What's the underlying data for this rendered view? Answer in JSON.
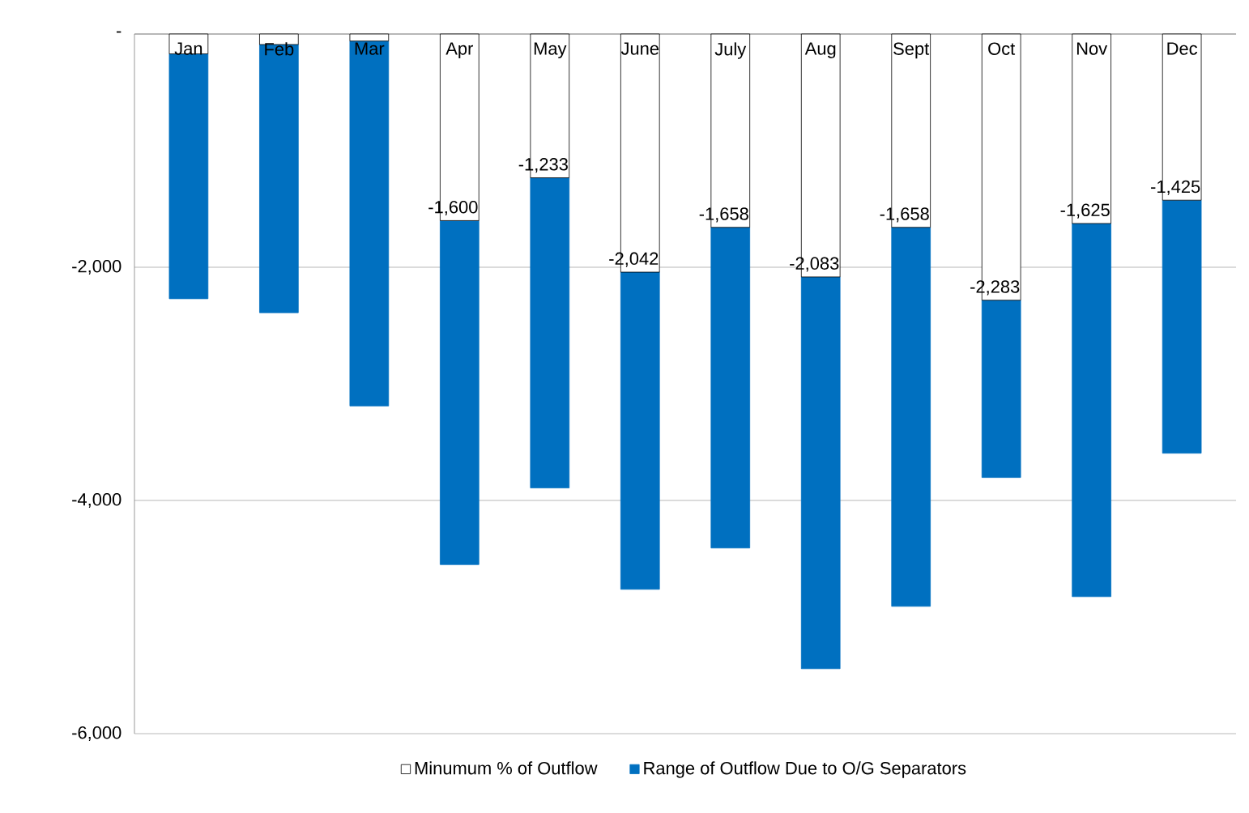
{
  "chart_data": {
    "type": "bar",
    "stacked": true,
    "categories": [
      "Jan",
      "Feb",
      "Mar",
      "Apr",
      "May",
      "June",
      "July",
      "Aug",
      "Sept",
      "Oct",
      "Nov",
      "Dec"
    ],
    "series": [
      {
        "name": "Minumum % of Outflow",
        "color": "#ffffff",
        "values": [
          -170,
          -90,
          -60,
          -1600,
          -1233,
          -2042,
          -1658,
          -2083,
          -1658,
          -2283,
          -1625,
          -1425
        ],
        "value_labels": [
          null,
          null,
          null,
          "-1,600",
          "-1,233",
          "-2,042",
          "-1,658",
          "-2,083",
          "-1,658",
          "-2,283",
          "-1,625",
          "-1,425"
        ]
      },
      {
        "name": "Range of Outflow Due to O/G Separators",
        "color": "#0070c0",
        "values": [
          -2100,
          -2300,
          -3130,
          -2950,
          -2660,
          -2720,
          -2750,
          -3360,
          -3250,
          -1520,
          -3200,
          -2170
        ]
      }
    ],
    "ylim": [
      -6000,
      0
    ],
    "yticks": [
      {
        "value": 0,
        "label": "-"
      },
      {
        "value": -2000,
        "label": "-2,000"
      },
      {
        "value": -4000,
        "label": "-4,000"
      },
      {
        "value": -6000,
        "label": "-6,000"
      }
    ],
    "grid": "y",
    "legend": "bottom"
  }
}
